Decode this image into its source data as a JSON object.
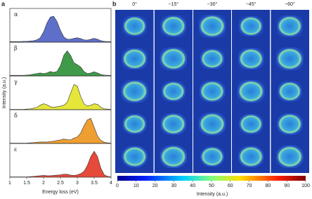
{
  "chart_data": [
    {
      "type": "area",
      "panel_label": "a",
      "xlabel": "Energy loss (eV)",
      "ylabel": "Intensity (a.u.)",
      "x": [
        1.0,
        1.1,
        1.2,
        1.3,
        1.4,
        1.5,
        1.6,
        1.7,
        1.8,
        1.9,
        2.0,
        2.1,
        2.2,
        2.3,
        2.4,
        2.5,
        2.6,
        2.7,
        2.8,
        2.9,
        3.0,
        3.1,
        3.2,
        3.3,
        3.4,
        3.5,
        3.6,
        3.7,
        3.8,
        3.9,
        4.0
      ],
      "xlim": [
        1,
        4
      ],
      "xticks": [
        1,
        1.5,
        2,
        2.5,
        3,
        3.5,
        4
      ],
      "ylim": [
        0,
        1
      ],
      "series": [
        {
          "name": "α",
          "color": "#5d6fc9",
          "values": [
            0.02,
            0.02,
            0.02,
            0.02,
            0.03,
            0.03,
            0.04,
            0.05,
            0.08,
            0.15,
            0.35,
            0.65,
            0.85,
            0.88,
            0.7,
            0.4,
            0.18,
            0.1,
            0.1,
            0.13,
            0.15,
            0.12,
            0.08,
            0.07,
            0.1,
            0.13,
            0.1,
            0.05,
            0.03,
            0.02,
            0.02
          ]
        },
        {
          "name": "β",
          "color": "#3f9a49",
          "values": [
            0.02,
            0.02,
            0.02,
            0.02,
            0.02,
            0.03,
            0.04,
            0.06,
            0.08,
            0.1,
            0.08,
            0.1,
            0.15,
            0.12,
            0.15,
            0.35,
            0.7,
            0.85,
            0.7,
            0.45,
            0.38,
            0.3,
            0.15,
            0.08,
            0.1,
            0.14,
            0.1,
            0.05,
            0.03,
            0.02,
            0.02
          ]
        },
        {
          "name": "γ",
          "color": "#e6e63a",
          "values": [
            0.01,
            0.01,
            0.01,
            0.01,
            0.01,
            0.02,
            0.03,
            0.05,
            0.08,
            0.15,
            0.2,
            0.17,
            0.1,
            0.08,
            0.1,
            0.12,
            0.15,
            0.25,
            0.55,
            0.85,
            0.8,
            0.45,
            0.2,
            0.12,
            0.15,
            0.2,
            0.18,
            0.08,
            0.03,
            0.02,
            0.01
          ]
        },
        {
          "name": "δ",
          "color": "#ef9f32",
          "values": [
            0.01,
            0.01,
            0.01,
            0.01,
            0.01,
            0.01,
            0.02,
            0.03,
            0.04,
            0.05,
            0.05,
            0.05,
            0.06,
            0.08,
            0.1,
            0.12,
            0.15,
            0.13,
            0.12,
            0.18,
            0.22,
            0.35,
            0.6,
            0.8,
            0.85,
            0.55,
            0.25,
            0.1,
            0.04,
            0.02,
            0.01
          ]
        },
        {
          "name": "ε",
          "color": "#e54a3b",
          "values": [
            0.01,
            0.01,
            0.01,
            0.01,
            0.01,
            0.01,
            0.02,
            0.03,
            0.04,
            0.05,
            0.06,
            0.05,
            0.05,
            0.06,
            0.07,
            0.08,
            0.1,
            0.1,
            0.07,
            0.06,
            0.08,
            0.12,
            0.2,
            0.4,
            0.7,
            0.88,
            0.7,
            0.3,
            0.08,
            0.03,
            0.01
          ]
        }
      ]
    },
    {
      "type": "heatmap-grid",
      "panel_label": "b",
      "columns": [
        "0°",
        "−15°",
        "−30°",
        "−45°",
        "−60°"
      ],
      "colorbar_label": "Intensity (a.u.)",
      "clim": [
        0,
        100
      ],
      "cticks": [
        0,
        10,
        20,
        30,
        40,
        50,
        60,
        70,
        80,
        90,
        100
      ]
    }
  ]
}
